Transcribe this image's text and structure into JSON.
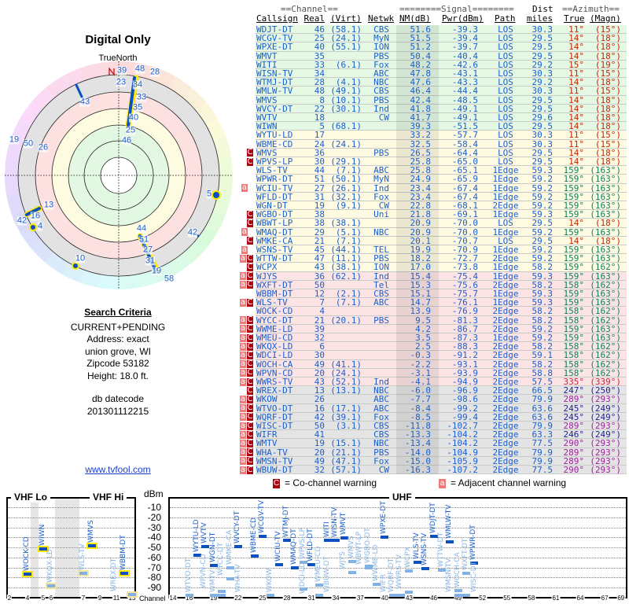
{
  "left": {
    "title": "Digital Only",
    "north_label": "TrueNorth",
    "radar_labels": [
      "39",
      "23",
      "48",
      "28",
      "34",
      "33",
      "35",
      "40",
      "25",
      "46",
      "43",
      "19",
      "50",
      "26",
      "5",
      "13",
      "16",
      "42",
      "4",
      "44",
      "51",
      "27",
      "31",
      "19",
      "58",
      "42",
      "10"
    ],
    "criteria": {
      "heading": "Search Criteria",
      "lines": [
        "CURRENT+PENDING",
        "Address: exact",
        "union grove, WI",
        "Zipcode 53182",
        "Height: 18.0 ft."
      ],
      "db_label": "db datecode",
      "db_value": "201301112215"
    },
    "site_link": "www.tvfool.com"
  },
  "table": {
    "header_top": {
      "channel": "==Channel==",
      "signal": "========Signal========",
      "dist": "Dist",
      "azimuth": "==Azimuth=="
    },
    "columns": {
      "callsign": "Callsign",
      "real": "Real",
      "virt": "(Virt)",
      "netwk": "Netwk",
      "nm": "NM(dB)",
      "pwr": "Pwr(dBm)",
      "path": "Path",
      "dist": "miles",
      "true": "True",
      "magn": "(Magn)"
    },
    "band_colors": {
      "g": "#e4f8e4",
      "y": "#fffbe2",
      "p": "#fde4e4",
      "x": "#e4e4e4"
    },
    "azimuth_colors": {
      "11°": "#cc2200",
      "14°": "#cc2200",
      "15°": "#cc2200",
      "158°": "#108060",
      "159°": "#108060",
      "335°": "#d02040",
      "247°": "#2020a0",
      "245°": "#2020a0",
      "246°": "#2020a0",
      "289°": "#a020a0",
      "290°": "#a020a0"
    },
    "rows": [
      [
        "",
        "WDJT-DT",
        "46",
        "(58.1)",
        "CBS",
        "51.6",
        "-39.3",
        "LOS",
        "30.3",
        "11°",
        "(15°)",
        "g"
      ],
      [
        "",
        "WCGV-TV",
        "25",
        "(24.1)",
        "MyN",
        "51.5",
        "-39.4",
        "LOS",
        "29.5",
        "14°",
        "(18°)",
        "g"
      ],
      [
        "",
        "WPXE-DT",
        "40",
        "(55.1)",
        "ION",
        "51.2",
        "-39.7",
        "LOS",
        "29.5",
        "14°",
        "(18°)",
        "g"
      ],
      [
        "",
        "WMVT",
        "35",
        "",
        "PBS",
        "50.4",
        "-40.4",
        "LOS",
        "29.5",
        "14°",
        "(18°)",
        "g"
      ],
      [
        "",
        "WITI",
        "33",
        "(6.1)",
        "Fox",
        "48.2",
        "-42.6",
        "LOS",
        "29.2",
        "15°",
        "(19°)",
        "g"
      ],
      [
        "",
        "WISN-TV",
        "34",
        "",
        "ABC",
        "47.8",
        "-43.1",
        "LOS",
        "30.3",
        "11°",
        "(15°)",
        "g"
      ],
      [
        "",
        "WTMJ-DT",
        "28",
        "(4.1)",
        "NBC",
        "47.6",
        "-43.3",
        "LOS",
        "29.2",
        "14°",
        "(18°)",
        "g"
      ],
      [
        "",
        "WMLW-TV",
        "48",
        "(49.1)",
        "CBS",
        "46.4",
        "-44.4",
        "LOS",
        "30.3",
        "11°",
        "(15°)",
        "g"
      ],
      [
        "",
        "WMVS",
        "8",
        "(10.1)",
        "PBS",
        "42.4",
        "-48.5",
        "LOS",
        "29.5",
        "14°",
        "(18°)",
        "g"
      ],
      [
        "",
        "WVCY-DT",
        "22",
        "(30.1)",
        "Ind",
        "41.8",
        "-49.1",
        "LOS",
        "29.5",
        "14°",
        "(18°)",
        "g"
      ],
      [
        "",
        "WVTV",
        "18",
        "",
        "CW",
        "41.7",
        "-49.1",
        "LOS",
        "29.6",
        "14°",
        "(18°)",
        "g"
      ],
      [
        "",
        "WIWN",
        "5",
        "(68.1)",
        "",
        "39.3",
        "-51.5",
        "LOS",
        "29.5",
        "14°",
        "(18°)",
        "g"
      ],
      [
        "",
        "WYTU-LD",
        "17",
        "",
        "",
        "33.2",
        "-57.7",
        "LOS",
        "30.3",
        "11°",
        "(15°)",
        "y"
      ],
      [
        "",
        "WBME-CD",
        "24",
        "(24.1)",
        "",
        "32.5",
        "-58.4",
        "LOS",
        "30.3",
        "11°",
        "(15°)",
        "y"
      ],
      [
        "C",
        "WMVS",
        "36",
        "",
        "PBS",
        "26.5",
        "-64.4",
        "LOS",
        "29.5",
        "14°",
        "(18°)",
        "y"
      ],
      [
        "C",
        "WPVS-LP",
        "30",
        "(29.1)",
        "",
        "25.8",
        "-65.0",
        "LOS",
        "29.5",
        "14°",
        "(18°)",
        "y"
      ],
      [
        "",
        "WLS-TV",
        "44",
        "(7.1)",
        "ABC",
        "25.8",
        "-65.1",
        "1Edge",
        "59.3",
        "159°",
        "(163°)",
        "y"
      ],
      [
        "",
        "WPWR-DT",
        "51",
        "(50.1)",
        "MyN",
        "24.9",
        "-65.9",
        "1Edge",
        "59.2",
        "159°",
        "(163°)",
        "y"
      ],
      [
        "a",
        "WCIU-TV",
        "27",
        "(26.1)",
        "Ind",
        "23.4",
        "-67.4",
        "1Edge",
        "59.2",
        "159°",
        "(163°)",
        "y"
      ],
      [
        "",
        "WFLD-DT",
        "31",
        "(32.1)",
        "Fox",
        "23.4",
        "-67.4",
        "1Edge",
        "59.2",
        "159°",
        "(163°)",
        "y"
      ],
      [
        "",
        "WGN-DT",
        "19",
        "(9.1)",
        "CW",
        "22.8",
        "-68.1",
        "2Edge",
        "59.2",
        "159°",
        "(163°)",
        "y"
      ],
      [
        "C",
        "WGBO-DT",
        "38",
        "",
        "Uni",
        "21.8",
        "-69.1",
        "1Edge",
        "59.3",
        "159°",
        "(163°)",
        "y"
      ],
      [
        "C",
        "WBWT-LP",
        "38",
        "(38.1)",
        "",
        "20.9",
        "-70.0",
        "LOS",
        "29.5",
        "14°",
        "(18°)",
        "y"
      ],
      [
        "a",
        "WMAQ-DT",
        "29",
        "(5.1)",
        "NBC",
        "20.9",
        "-70.0",
        "1Edge",
        "59.2",
        "159°",
        "(163°)",
        "y"
      ],
      [
        "C",
        "WMKE-CA",
        "21",
        "(7.1)",
        "",
        "20.1",
        "-70.7",
        "LOS",
        "29.5",
        "14°",
        "(18°)",
        "y"
      ],
      [
        "a",
        "WSNS-TV",
        "45",
        "(44.1)",
        "TEL",
        "19.9",
        "-70.9",
        "1Edge",
        "59.2",
        "159°",
        "(163°)",
        "y"
      ],
      [
        "aC",
        "WTTW-DT",
        "47",
        "(11.1)",
        "PBS",
        "18.2",
        "-72.7",
        "2Edge",
        "59.2",
        "159°",
        "(163°)",
        "y"
      ],
      [
        "C",
        "WCPX",
        "43",
        "(38.1)",
        "ION",
        "17.0",
        "-73.8",
        "1Edge",
        "58.2",
        "159°",
        "(162°)",
        "y"
      ],
      [
        "aC",
        "WJYS",
        "36",
        "(62.1)",
        "Ind",
        "15.4",
        "-75.4",
        "1Edge",
        "59.3",
        "159°",
        "(163°)",
        "p"
      ],
      [
        "aC",
        "WXFT-DT",
        "50",
        "",
        "Tel",
        "15.3",
        "-75.6",
        "2Edge",
        "58.2",
        "158°",
        "(162°)",
        "p"
      ],
      [
        "",
        "WBBM-DT",
        "12",
        "(2.1)",
        "CBS",
        "15.1",
        "-75.7",
        "1Edge",
        "59.3",
        "159°",
        "(163°)",
        "p"
      ],
      [
        "aC",
        "WLS-TV",
        "7",
        "(7.1)",
        "ABC",
        "14.7",
        "-76.1",
        "1Edge",
        "59.3",
        "159°",
        "(163°)",
        "p"
      ],
      [
        "",
        "WOCK-CD",
        "4",
        "",
        "",
        "13.9",
        "-76.9",
        "2Edge",
        "58.2",
        "158°",
        "(162°)",
        "p"
      ],
      [
        "aC",
        "WYCC-DT",
        "21",
        "(20.1)",
        "PBS",
        "9.5",
        "-81.3",
        "2Edge",
        "58.2",
        "158°",
        "(162°)",
        "p"
      ],
      [
        "aC",
        "WWME-LD",
        "39",
        "",
        "",
        "4.2",
        "-86.7",
        "2Edge",
        "59.2",
        "159°",
        "(163°)",
        "p"
      ],
      [
        "aC",
        "WMEU-CD",
        "32",
        "",
        "",
        "3.5",
        "-87.3",
        "1Edge",
        "59.2",
        "159°",
        "(163°)",
        "p"
      ],
      [
        "aC",
        "WKQX-LD",
        "6",
        "",
        "",
        "2.5",
        "-88.3",
        "2Edge",
        "58.2",
        "158°",
        "(162°)",
        "p"
      ],
      [
        "aC",
        "WDCI-LD",
        "30",
        "",
        "",
        "-0.3",
        "-91.2",
        "2Edge",
        "59.1",
        "158°",
        "(162°)",
        "p"
      ],
      [
        "aC",
        "WOCH-CA",
        "49",
        "(41.1)",
        "",
        "-2.2",
        "-93.1",
        "2Edge",
        "58.2",
        "158°",
        "(162°)",
        "p"
      ],
      [
        "aC",
        "WPVN-CD",
        "20",
        "(24.1)",
        "",
        "-3.1",
        "-93.9",
        "2Edge",
        "58.8",
        "158°",
        "(162°)",
        "p"
      ],
      [
        "aC",
        "WWRS-TV",
        "43",
        "(52.1)",
        "Ind",
        "-4.1",
        "-94.9",
        "2Edge",
        "57.5",
        "335°",
        "(339°)",
        "p"
      ],
      [
        "C",
        "WREX-DT",
        "13",
        "(13.1)",
        "NBC",
        "-6.0",
        "-96.9",
        "2Edge",
        "66.5",
        "247°",
        "(250°)",
        "x"
      ],
      [
        "aC",
        "WKOW",
        "26",
        "",
        "ABC",
        "-7.7",
        "-98.6",
        "2Edge",
        "79.9",
        "289°",
        "(293°)",
        "x"
      ],
      [
        "aC",
        "WTVO-DT",
        "16",
        "(17.1)",
        "ABC",
        "-8.4",
        "-99.2",
        "2Edge",
        "63.6",
        "245°",
        "(249°)",
        "x"
      ],
      [
        "aC",
        "WQRF-DT",
        "42",
        "(39.1)",
        "Fox",
        "-8.5",
        "-99.4",
        "2Edge",
        "63.6",
        "245°",
        "(249°)",
        "x"
      ],
      [
        "aC",
        "WISC-DT",
        "50",
        "(3.1)",
        "CBS",
        "-11.8",
        "-102.7",
        "2Edge",
        "79.9",
        "289°",
        "(293°)",
        "x"
      ],
      [
        "aC",
        "WIFR",
        "41",
        "",
        "CBS",
        "-13.3",
        "-104.2",
        "2Edge",
        "63.3",
        "246°",
        "(249°)",
        "x"
      ],
      [
        "aC",
        "WMTV",
        "19",
        "(15.1)",
        "NBC",
        "-13.4",
        "-104.2",
        "2Edge",
        "77.5",
        "290°",
        "(293°)",
        "x"
      ],
      [
        "aC",
        "WHA-TV",
        "20",
        "(21.1)",
        "PBS",
        "-14.0",
        "-104.9",
        "2Edge",
        "79.9",
        "289°",
        "(293°)",
        "x"
      ],
      [
        "aC",
        "WMSN-TV",
        "49",
        "(47.1)",
        "Fox",
        "-15.0",
        "-105.9",
        "2Edge",
        "79.9",
        "289°",
        "(293°)",
        "x"
      ],
      [
        "aC",
        "WBUW-DT",
        "32",
        "(57.1)",
        "CW",
        "-16.3",
        "-107.2",
        "2Edge",
        "77.5",
        "290°",
        "(293°)",
        "x"
      ]
    ]
  },
  "legend": {
    "co_glyph": "C",
    "co_label": "= Co-channel warning",
    "adj_glyph": "a",
    "adj_label": "= Adjacent channel warning"
  },
  "spectrum": {
    "vhf_lo": "VHF Lo",
    "vhf_hi": "VHF Hi",
    "uhf": "UHF",
    "unit": "dBm",
    "channel_label": "Channel",
    "dbm_ticks": [
      "-10",
      "-20",
      "-30",
      "-40",
      "-50",
      "-60",
      "-70",
      "-80",
      "-90"
    ],
    "vhf_ticks": [
      "2",
      "4",
      "5",
      "6",
      "7",
      "9",
      "11",
      "13"
    ],
    "uhf_ticks": [
      "14",
      "16",
      "19",
      "22",
      "25",
      "28",
      "31",
      "34",
      "37",
      "40",
      "43",
      "46",
      "49",
      "52",
      "55",
      "58",
      "61",
      "64",
      "67",
      "69"
    ]
  }
}
